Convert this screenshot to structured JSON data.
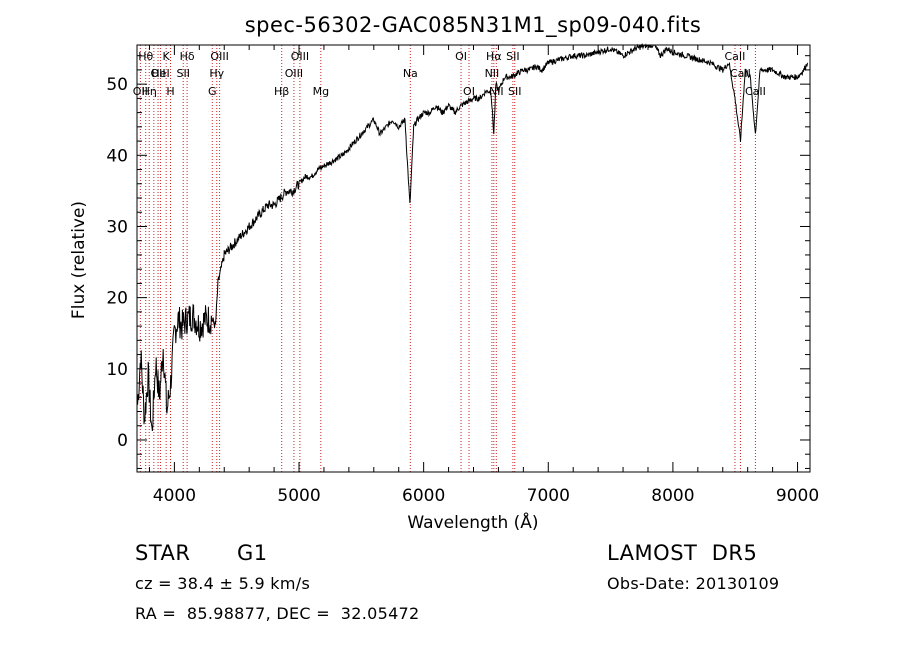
{
  "chart_data": {
    "type": "line",
    "title": "spec-56302-GAC085N31M1_sp09-040.fits",
    "xlabel": "Wavelength (Å)",
    "ylabel": "Flux (relative)",
    "xlim": [
      3700,
      9100
    ],
    "ylim": [
      -4.5,
      55.5
    ],
    "xticks": [
      4000,
      5000,
      6000,
      7000,
      8000,
      9000
    ],
    "yticks": [
      0,
      10,
      20,
      30,
      40,
      50
    ],
    "grid": false,
    "line_color": "#000000",
    "marker_color": "#cc2222",
    "series": [
      {
        "x": [
          3705,
          3730,
          3760,
          3790,
          3820,
          3850,
          3880,
          3910,
          3940,
          3970,
          4000,
          4030,
          4060,
          4100,
          4150,
          4200,
          4250,
          4300,
          4330,
          4350,
          4400,
          4450,
          4500,
          4550,
          4600,
          4650,
          4700,
          4750,
          4800,
          4850,
          4900,
          4950,
          5000,
          5050,
          5100,
          5150,
          5200,
          5250,
          5300,
          5350,
          5400,
          5450,
          5500,
          5550,
          5600,
          5650,
          5700,
          5750,
          5800,
          5850,
          5890,
          5920,
          5950,
          6000,
          6050,
          6100,
          6150,
          6200,
          6250,
          6300,
          6350,
          6400,
          6450,
          6500,
          6540,
          6563,
          6580,
          6600,
          6650,
          6700,
          6750,
          6800,
          6850,
          6900,
          6950,
          7000,
          7100,
          7200,
          7300,
          7400,
          7500,
          7600,
          7700,
          7800,
          7850,
          7900,
          7950,
          8000,
          8100,
          8200,
          8300,
          8400,
          8450,
          8498,
          8542,
          8580,
          8620,
          8662,
          8700,
          8800,
          8900,
          9000,
          9050,
          9080
        ],
        "y": [
          5,
          12,
          3,
          9,
          1,
          11,
          6,
          13,
          4,
          8,
          15,
          17,
          16,
          17,
          17.5,
          16,
          17,
          17,
          16,
          22,
          26,
          27,
          28,
          29,
          30,
          31,
          32,
          33,
          33,
          34,
          35,
          35,
          36,
          37,
          37,
          38,
          38.5,
          39,
          39.5,
          40,
          41,
          42,
          43,
          44,
          45,
          43,
          44,
          45,
          44,
          45,
          33,
          44,
          45,
          46,
          46,
          47,
          46,
          47,
          46,
          47,
          47.5,
          48,
          48,
          49,
          49,
          43,
          50,
          49,
          51,
          51,
          51.5,
          52,
          52,
          52.5,
          52,
          53,
          53.5,
          54,
          54,
          54.5,
          55,
          54,
          55,
          55.5,
          55.5,
          54,
          55,
          54.5,
          54,
          53.5,
          53,
          52,
          53,
          48,
          42,
          52,
          51,
          43,
          52,
          52,
          51,
          51,
          52,
          53
        ]
      }
    ],
    "line_markers": [
      {
        "x": 3727,
        "label": "OII",
        "row": 2
      },
      {
        "x": 3770,
        "label": "Hθ",
        "row": 0
      },
      {
        "x": 3798,
        "label": "Hη",
        "row": 2
      },
      {
        "x": 3835,
        "label": "",
        "row": -1
      },
      {
        "x": 3869,
        "label": "OII",
        "row": 1
      },
      {
        "x": 3889,
        "label": "HeI",
        "row": 1
      },
      {
        "x": 3934,
        "label": "K",
        "row": 0
      },
      {
        "x": 3969,
        "label": "H",
        "row": 2
      },
      {
        "x": 4071,
        "label": "SII",
        "row": 1
      },
      {
        "x": 4102,
        "label": "Hδ",
        "row": 0
      },
      {
        "x": 4304,
        "label": "G",
        "row": 2
      },
      {
        "x": 4340,
        "label": "Hγ",
        "row": 1
      },
      {
        "x": 4363,
        "label": "OIII",
        "row": 0
      },
      {
        "x": 4861,
        "label": "Hβ",
        "row": 2
      },
      {
        "x": 4959,
        "label": "OIII",
        "row": 1
      },
      {
        "x": 5007,
        "label": "OIII",
        "row": 0
      },
      {
        "x": 5175,
        "label": "Mg",
        "row": 2
      },
      {
        "x": 5893,
        "label": "Na",
        "row": 1
      },
      {
        "x": 6300,
        "label": "OI",
        "row": 0
      },
      {
        "x": 6364,
        "label": "OI",
        "row": 2
      },
      {
        "x": 6548,
        "label": "NII",
        "row": 1
      },
      {
        "x": 6563,
        "label": "Hα",
        "row": 0
      },
      {
        "x": 6583,
        "label": "NII",
        "row": 2
      },
      {
        "x": 6716,
        "label": "SII",
        "row": 0
      },
      {
        "x": 6731,
        "label": "SII",
        "row": 2
      },
      {
        "x": 8498,
        "label": "CaII",
        "row": 0
      },
      {
        "x": 8542,
        "label": "CaII",
        "row": 1
      },
      {
        "x": 8662,
        "label": "CaII",
        "row": 2
      }
    ]
  },
  "info": {
    "object_class": "STAR",
    "subclass": "G1",
    "survey": "LAMOST  DR5",
    "cz": "cz = 38.4 ± 5.9 km/s",
    "obs_date": "Obs-Date: 20130109",
    "coords": "RA =  85.98877, DEC =  32.05472"
  }
}
